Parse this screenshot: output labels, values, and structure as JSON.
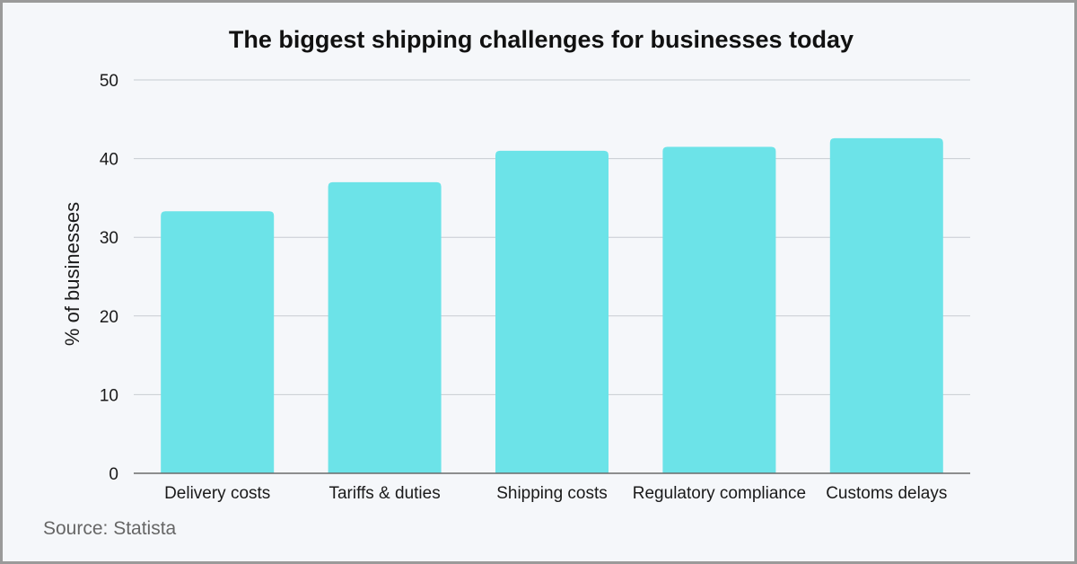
{
  "chart_data": {
    "type": "bar",
    "title": "The biggest shipping challenges for businesses today",
    "xlabel": "",
    "ylabel": "% of businesses",
    "ylim": [
      0,
      50
    ],
    "yticks": [
      0,
      10,
      20,
      30,
      40,
      50
    ],
    "grid": true,
    "categories": [
      "Delivery costs",
      "Tariffs & duties",
      "Shipping costs",
      "Regulatory compliance",
      "Customs delays"
    ],
    "values": [
      33.3,
      37,
      41,
      41.5,
      42.6
    ],
    "bar_color": "#6ce3e8",
    "source": "Source: Statista"
  }
}
